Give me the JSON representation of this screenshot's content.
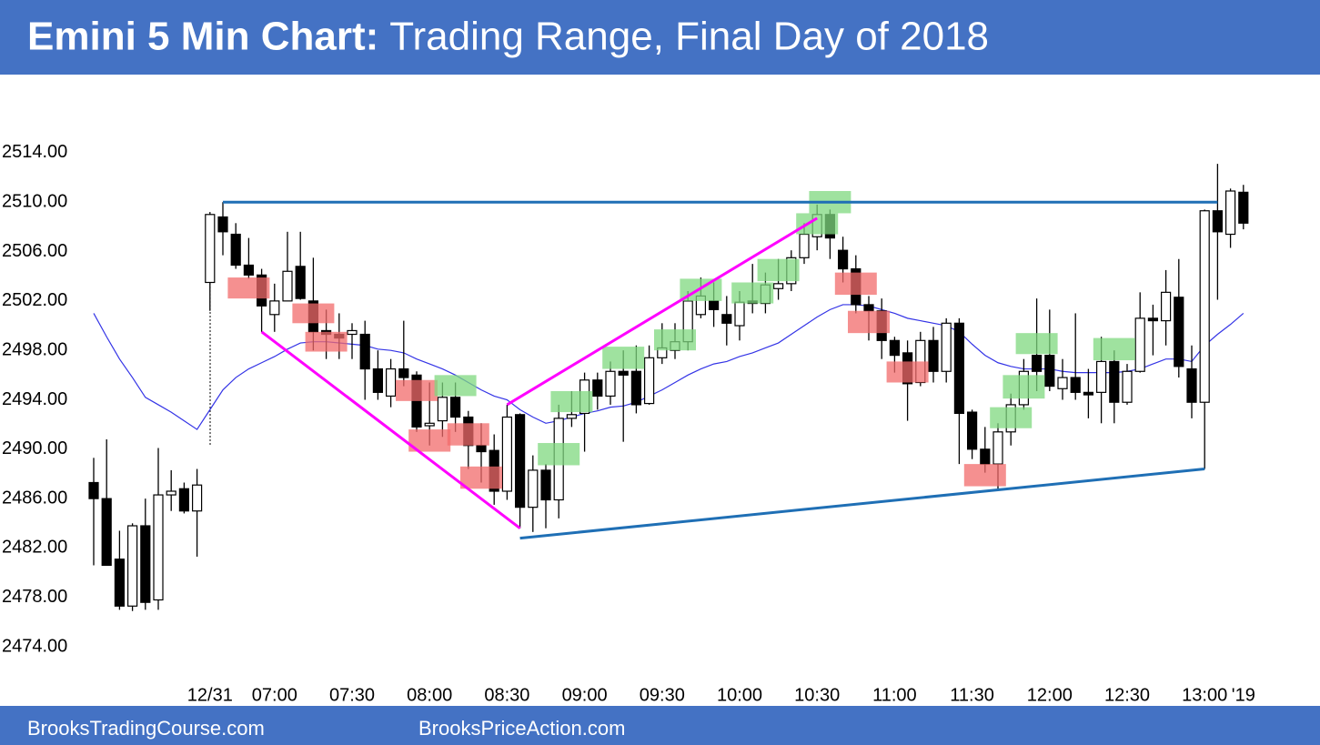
{
  "chart_data": {
    "type": "candlestick",
    "title_bold": "Emini 5 Min Chart:",
    "title": "Trading Range, Final Day of 2018",
    "footer_left": "BrooksTradingCourse.com",
    "footer_right": "BrooksPriceAction.com",
    "categories": [
      null,
      null,
      null,
      null,
      null,
      null,
      null,
      null,
      null,
      "12/31",
      null,
      null,
      null,
      null,
      "07:00",
      null,
      null,
      null,
      null,
      null,
      "07:30",
      null,
      null,
      null,
      null,
      null,
      "08:00",
      null,
      null,
      null,
      null,
      null,
      "08:30",
      null,
      null,
      null,
      null,
      null,
      "09:00",
      null,
      null,
      null,
      null,
      null,
      "09:30",
      null,
      null,
      null,
      null,
      null,
      "10:00",
      null,
      null,
      null,
      null,
      null,
      "10:30",
      null,
      null,
      null,
      null,
      null,
      "11:00",
      null,
      null,
      null,
      null,
      null,
      "11:30",
      null,
      null,
      null,
      null,
      null,
      "12:00",
      null,
      null,
      null,
      null,
      null,
      "12:30",
      null,
      null,
      null,
      null,
      null,
      "13:00",
      null,
      null,
      "'19"
    ],
    "open": [
      2487.3,
      2486,
      2481.1,
      2477.3,
      2483.8,
      2477.8,
      2486.3,
      2486.8,
      2485,
      2503.5,
      2508.8,
      2507.4,
      2504.9,
      2504.1,
      2500.9,
      2502,
      2504.8,
      2502,
      2499.6,
      2499.3,
      2499.3,
      2499.3,
      2496.5,
      2494.3,
      2496.5,
      2496,
      2491.9,
      2492.3,
      2494.2,
      2492.6,
      2490.3,
      2489.9,
      2486.6,
      2492.8,
      2485.3,
      2488.3,
      2485.9,
      2492.5,
      2492.9,
      2495.6,
      2494.3,
      2496.3,
      2496.3,
      2493.7,
      2497.4,
      2498,
      2498.7,
      2500.9,
      2502,
      2500.9,
      2500,
      2502,
      2501.8,
      2503,
      2503.4,
      2505.5,
      2507.2,
      2509,
      2506.1,
      2504.6,
      2501.7,
      2501.2,
      2498.8,
      2497.8,
      2495.4,
      2498.8,
      2496.3,
      2500.2,
      2493,
      2490,
      2488.8,
      2491.4,
      2493.6,
      2497.6,
      2497.6,
      2494.9,
      2495.8,
      2494.6,
      2494.6,
      2497.1,
      2493.8,
      2496.3,
      2500.6,
      2500.4,
      2502.3,
      2496.5,
      2493.8,
      2509.3,
      2507.4,
      2510.8
    ],
    "high": [
      2489.3,
      2490.8,
      2483.4,
      2484,
      2486,
      2490.1,
      2488.3,
      2487.3,
      2488.4,
      2509.2,
      2510,
      2508.3,
      2507.1,
      2504.6,
      2503.4,
      2507.6,
      2507.6,
      2505.5,
      2501.3,
      2501,
      2500.2,
      2500.4,
      2498,
      2497.3,
      2500.4,
      2496.3,
      2495.4,
      2495.4,
      2495.4,
      2493.1,
      2492.1,
      2491.2,
      2493.6,
      2492.9,
      2489.5,
      2488.8,
      2493.6,
      2494.7,
      2496.2,
      2496.2,
      2497.1,
      2498,
      2498.4,
      2498.4,
      2500.2,
      2500.2,
      2502.8,
      2503.9,
      2503.5,
      2502.4,
      2502.8,
      2505,
      2504.3,
      2505.4,
      2506.1,
      2508.3,
      2509.8,
      2509.4,
      2507.2,
      2505.7,
      2502.4,
      2502.2,
      2499.1,
      2498.8,
      2499.5,
      2499.9,
      2500.6,
      2500.6,
      2493.2,
      2491.8,
      2492.1,
      2494.5,
      2497.3,
      2502.2,
      2501.3,
      2497.3,
      2501,
      2496.5,
      2499.1,
      2498,
      2496.9,
      2502.7,
      2501.7,
      2504.5,
      2505.4,
      2498.4,
      2509.4,
      2513.1,
      2511.1,
      2511.4
    ],
    "low": [
      2480.6,
      2480.6,
      2477,
      2476.9,
      2477,
      2477,
      2485,
      2484.8,
      2481.3,
      2501.2,
      2505.7,
      2504.6,
      2503.8,
      2499.5,
      2499.5,
      2502.1,
      2502.1,
      2498,
      2497.3,
      2497.3,
      2497.3,
      2494,
      2494,
      2493.4,
      2495.1,
      2491.4,
      2490.3,
      2491,
      2491.4,
      2488.4,
      2487.3,
      2485.5,
      2485.9,
      2483.6,
      2483.3,
      2483.6,
      2484.4,
      2491.8,
      2489.8,
      2493.2,
      2493.6,
      2490.6,
      2492.9,
      2493.6,
      2496.9,
      2497.3,
      2498,
      2500.6,
      2499.9,
      2498.4,
      2498.8,
      2501,
      2501,
      2502.1,
      2502.8,
      2505,
      2506.1,
      2505.4,
      2503.5,
      2501,
      2498.8,
      2497.3,
      2496.2,
      2492.3,
      2495.1,
      2495.4,
      2495.4,
      2488.8,
      2489.2,
      2488.1,
      2486.7,
      2490.3,
      2493.2,
      2494.7,
      2494.7,
      2494,
      2494,
      2492.5,
      2492.1,
      2492.1,
      2493.6,
      2496.2,
      2497.6,
      2498.4,
      2495.8,
      2492.5,
      2488.4,
      2502.1,
      2506.3,
      2507.8
    ],
    "close": [
      2486,
      2480.6,
      2477.3,
      2483.8,
      2477.6,
      2486.3,
      2486.6,
      2485,
      2487.1,
      2509,
      2507.6,
      2504.9,
      2504.1,
      2501.6,
      2502,
      2504.4,
      2502.2,
      2499.5,
      2499.3,
      2499,
      2499.6,
      2496.5,
      2494.6,
      2496.5,
      2495.8,
      2491.8,
      2492.1,
      2494.2,
      2492.6,
      2490.3,
      2489.8,
      2486.6,
      2492.6,
      2485.3,
      2488.3,
      2485.9,
      2492.5,
      2492.8,
      2495.6,
      2494.3,
      2496.3,
      2496,
      2493.6,
      2497.4,
      2498.2,
      2498.7,
      2502,
      2502.4,
      2501.3,
      2500.2,
      2501.9,
      2501.8,
      2503.3,
      2503.4,
      2505.5,
      2507.4,
      2509,
      2507.1,
      2504.6,
      2501.7,
      2501.2,
      2498.8,
      2497.6,
      2495.3,
      2498.8,
      2496.3,
      2500.2,
      2492.9,
      2490,
      2488.8,
      2491.4,
      2493.6,
      2496.3,
      2496.3,
      2495.1,
      2495.8,
      2494.6,
      2494.4,
      2497.1,
      2493.8,
      2496.3,
      2500.6,
      2500.4,
      2502.7,
      2496.7,
      2493.8,
      2509.3,
      2507.6,
      2510.9,
      2508.3
    ],
    "up_color": "#ffffff",
    "down_color": "#000000",
    "ema": {
      "color": "#3434e6",
      "values": [
        2501,
        2499.1,
        2497.3,
        2495.8,
        2494.2,
        2493.6,
        2493,
        2492.3,
        2491.6,
        2493.2,
        2494.8,
        2495.8,
        2496.5,
        2497,
        2497.5,
        2498.1,
        2498.6,
        2498.7,
        2498.7,
        2498.6,
        2498.5,
        2498.4,
        2498.1,
        2498,
        2497.8,
        2497.3,
        2496.9,
        2496.5,
        2496,
        2495.4,
        2494.8,
        2494.3,
        2494,
        2493.2,
        2492.6,
        2492.1,
        2492.3,
        2492.6,
        2492.9,
        2493.1,
        2493.4,
        2493.5,
        2493.8,
        2494.3,
        2494.8,
        2495.4,
        2496,
        2496.5,
        2496.9,
        2497.1,
        2497.5,
        2497.8,
        2498.2,
        2498.6,
        2499.3,
        2500,
        2500.7,
        2501.3,
        2501.7,
        2501.7,
        2501.6,
        2501.3,
        2501,
        2500.6,
        2500.4,
        2500.2,
        2500,
        2499.5,
        2498.5,
        2497.6,
        2497,
        2496.7,
        2496.5,
        2496.5,
        2496.5,
        2496.3,
        2496.2,
        2496.2,
        2496.2,
        2496.2,
        2496.3,
        2496.5,
        2496.9,
        2497.3,
        2497.3,
        2497.1,
        2498.4,
        2499.3,
        2500.1,
        2501
      ]
    },
    "trend_lines": [
      {
        "color": "#1f6fb5",
        "from": [
          10,
          2510
        ],
        "to": [
          87,
          2510
        ]
      },
      {
        "color": "#1f6fb5",
        "from": [
          33,
          2482.8
        ],
        "to": [
          86,
          2488.4
        ]
      },
      {
        "color": "#ff00ff",
        "from": [
          13,
          2499.5
        ],
        "to": [
          33,
          2483.6
        ]
      },
      {
        "color": "#ff00ff",
        "from": [
          32,
          2493.6
        ],
        "to": [
          56,
          2508.7
        ]
      }
    ],
    "highlights": [
      {
        "color": "#f26b6b",
        "boxes": [
          [
            12,
            2502.2,
            2503.9
          ],
          [
            17,
            2500.2,
            2501.8
          ],
          [
            18,
            2497.9,
            2499.5
          ],
          [
            25,
            2493.9,
            2495.6
          ],
          [
            26,
            2489.8,
            2491.6
          ],
          [
            29,
            2490.3,
            2492.1
          ],
          [
            30,
            2486.8,
            2488.6
          ],
          [
            59,
            2502.5,
            2504.3
          ],
          [
            60,
            2499.4,
            2501.2
          ],
          [
            63,
            2495.4,
            2497.1
          ],
          [
            69,
            2487,
            2488.8
          ]
        ]
      },
      {
        "color": "#7fd87f",
        "boxes": [
          [
            28,
            2494.3,
            2496
          ],
          [
            36,
            2488.7,
            2490.5
          ],
          [
            37,
            2493,
            2494.7
          ],
          [
            41,
            2496.5,
            2498.3
          ],
          [
            45,
            2498,
            2499.7
          ],
          [
            47,
            2502,
            2503.8
          ],
          [
            51,
            2501.8,
            2503.5
          ],
          [
            53,
            2503.6,
            2505.4
          ],
          [
            56,
            2507.4,
            2509.1
          ],
          [
            57,
            2509.1,
            2510.9
          ],
          [
            71,
            2491.7,
            2493.4
          ],
          [
            72,
            2494.1,
            2496
          ],
          [
            73,
            2497.7,
            2499.4
          ],
          [
            79,
            2497.2,
            2499
          ]
        ]
      }
    ],
    "ylim": [
      2469,
      2519
    ],
    "yticks": [
      {
        "value": 2474,
        "label": "2474.00"
      },
      {
        "value": 2478,
        "label": "2478.00"
      },
      {
        "value": 2482,
        "label": "2482.00"
      },
      {
        "value": 2486,
        "label": "2486.00"
      },
      {
        "value": 2490,
        "label": "2490.00"
      },
      {
        "value": 2494,
        "label": "2494.00"
      },
      {
        "value": 2498,
        "label": "2498.00"
      },
      {
        "value": 2502,
        "label": "2502.00"
      },
      {
        "value": 2506,
        "label": "2506.00"
      },
      {
        "value": 2510,
        "label": "2510.00"
      },
      {
        "value": 2514,
        "label": "2514.00"
      }
    ],
    "grid": false
  }
}
